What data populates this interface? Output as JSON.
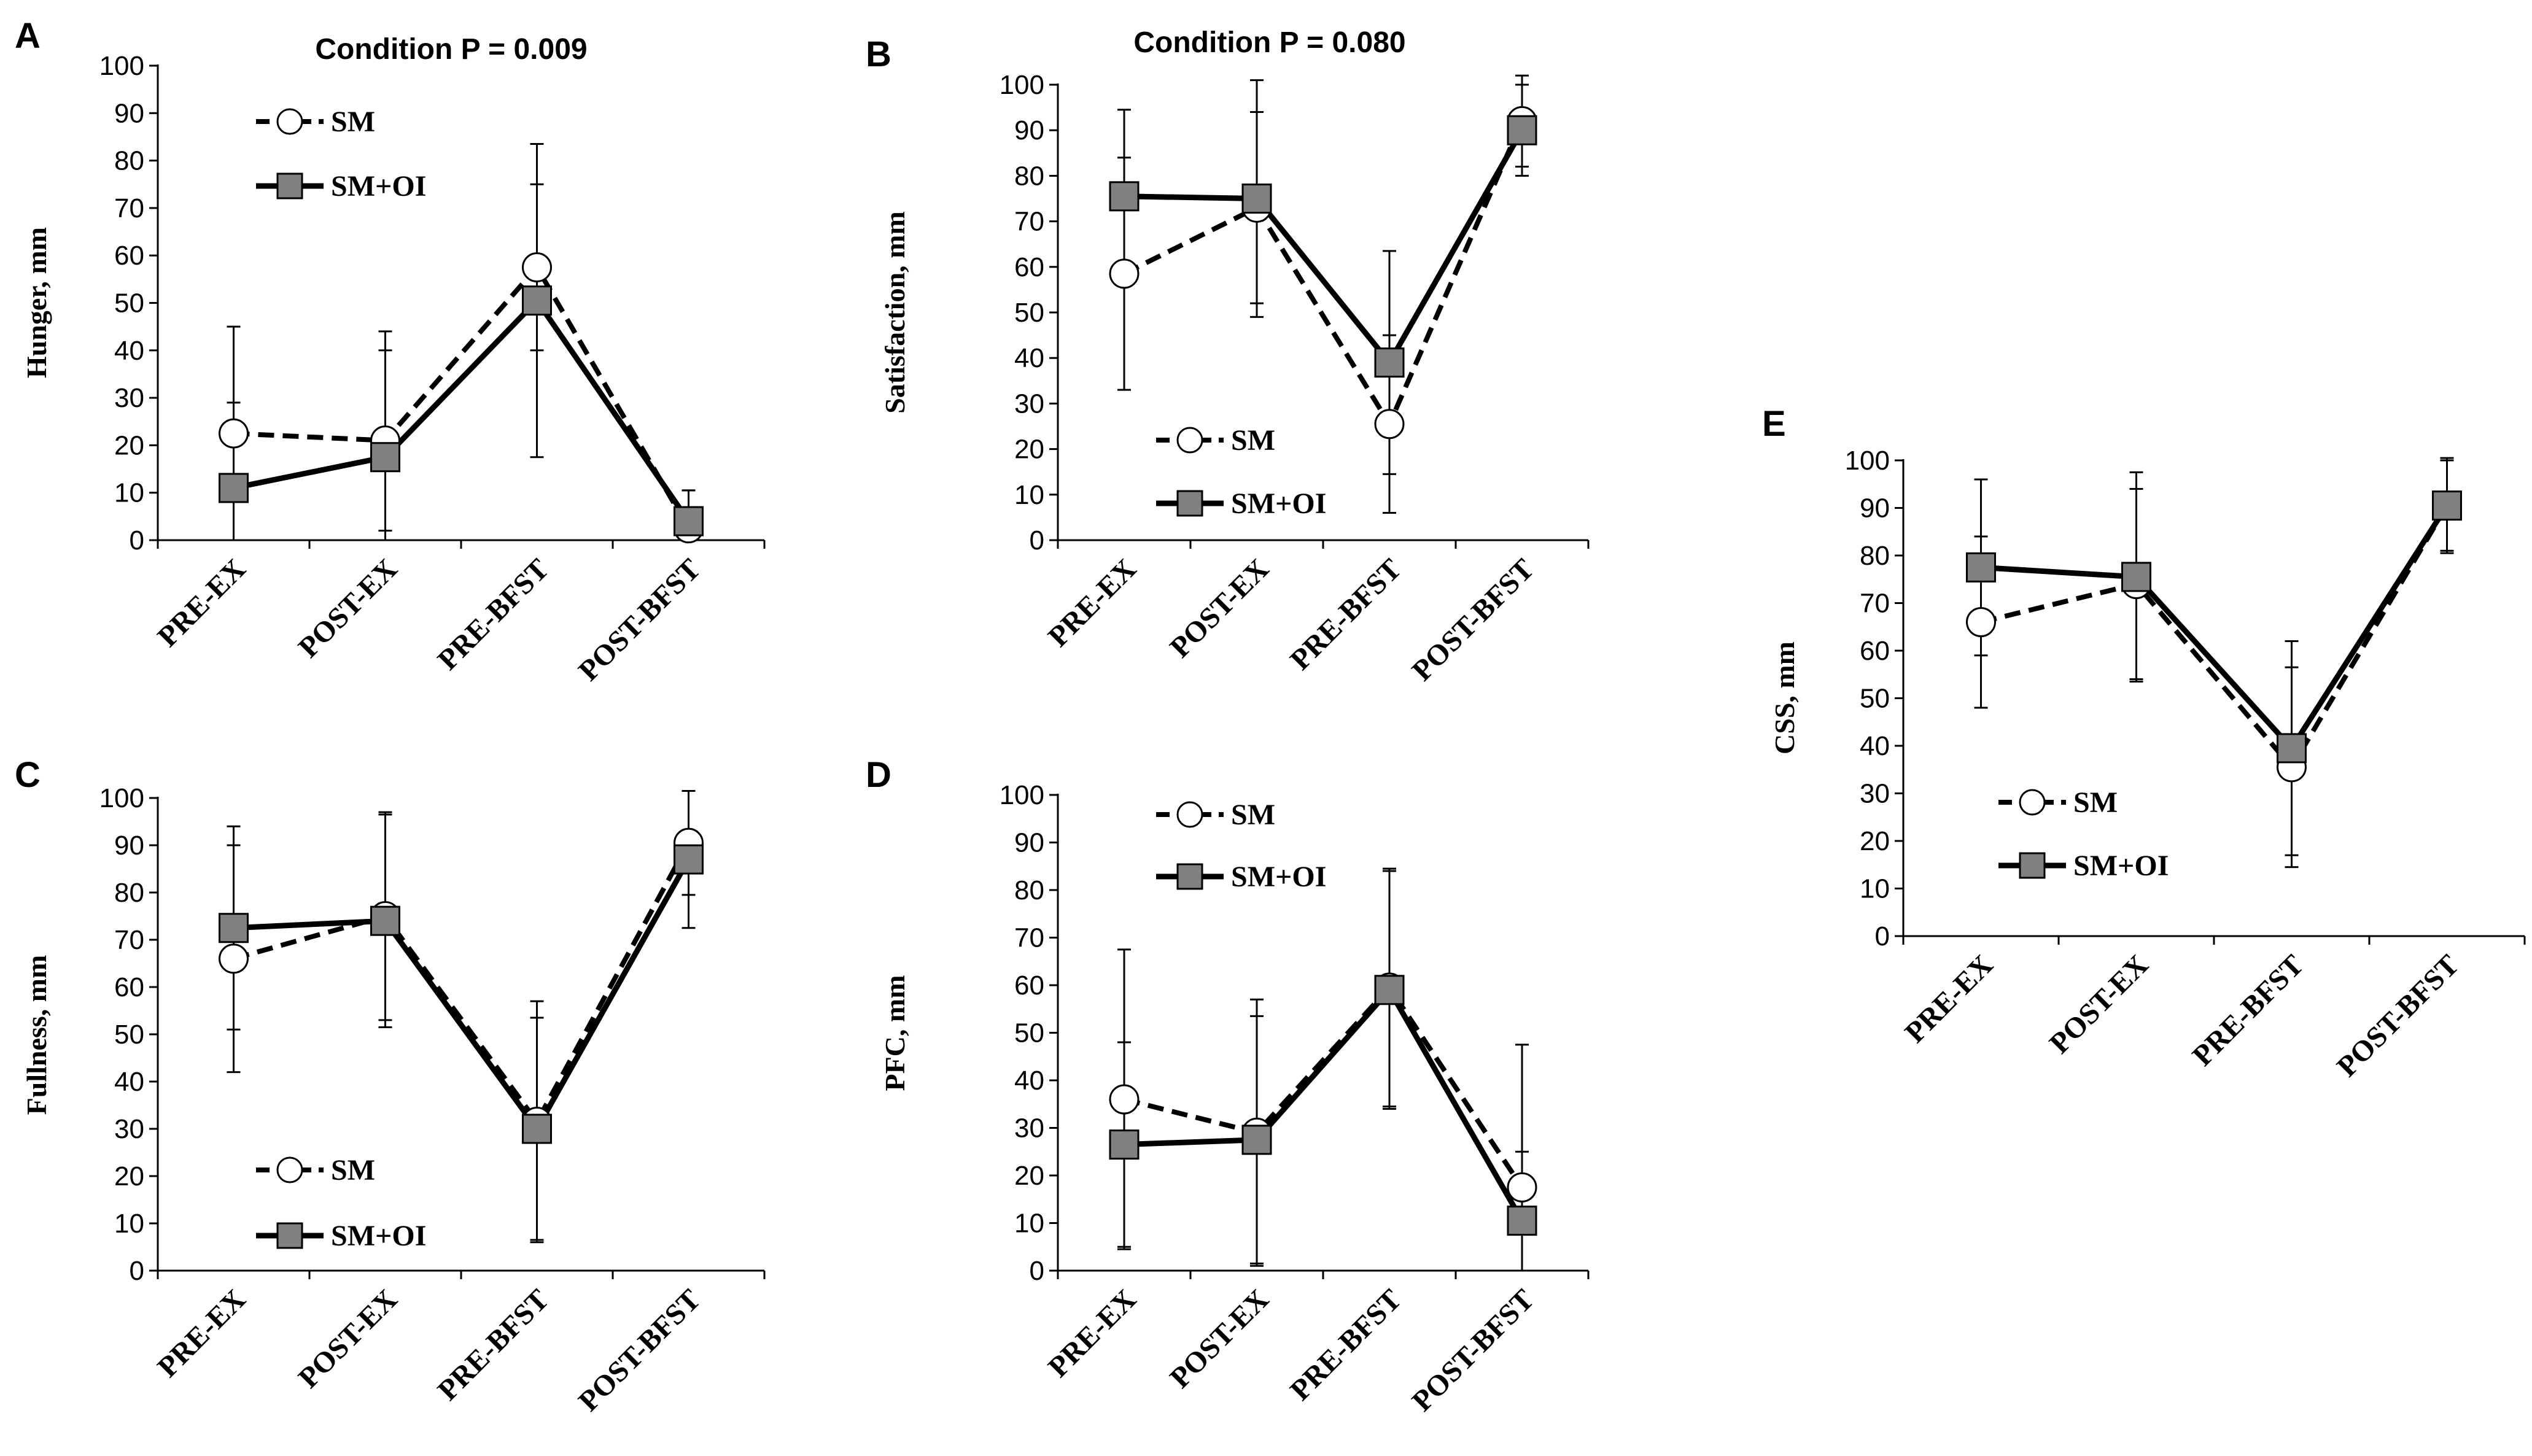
{
  "chart_data": [
    {
      "panel": "A",
      "type": "line",
      "title": "Condition P = 0.009",
      "ylabel": "Hunger, mm",
      "categories": [
        "PRE-EX",
        "POST-EX",
        "PRE-BFST",
        "POST-BFST"
      ],
      "ylim": [
        0,
        100
      ],
      "yticks": [
        0,
        10,
        20,
        30,
        40,
        50,
        60,
        70,
        80,
        90,
        100
      ],
      "legend_position": "top-left",
      "series": [
        {
          "name": "SM",
          "marker": "circle",
          "line": "dashed",
          "values": [
            22.5,
            21,
            57.5,
            2.5
          ],
          "error": [
            22.5,
            19,
            17.5,
            8
          ]
        },
        {
          "name": "SM+OI",
          "marker": "square",
          "line": "solid",
          "values": [
            11,
            17.5,
            50.5,
            4
          ],
          "error": [
            18,
            26.5,
            33,
            6.5
          ]
        }
      ]
    },
    {
      "panel": "B",
      "type": "line",
      "title": "Condition P = 0.080",
      "ylabel": "Satisfaction, mm",
      "categories": [
        "PRE-EX",
        "POST-EX",
        "PRE-BFST",
        "POST-BFST"
      ],
      "ylim": [
        0,
        100
      ],
      "yticks": [
        0,
        10,
        20,
        30,
        40,
        50,
        60,
        70,
        80,
        90,
        100
      ],
      "legend_position": "bottom-left",
      "series": [
        {
          "name": "SM",
          "marker": "circle",
          "line": "dashed",
          "values": [
            58.5,
            73,
            25.5,
            92
          ],
          "error": [
            25.5,
            21,
            19.5,
            10
          ]
        },
        {
          "name": "SM+OI",
          "marker": "square",
          "line": "solid",
          "values": [
            75.5,
            75,
            39,
            90
          ],
          "error": [
            19,
            26,
            24.5,
            10
          ]
        }
      ]
    },
    {
      "panel": "C",
      "type": "line",
      "title": "",
      "ylabel": "Fullness, mm",
      "categories": [
        "PRE-EX",
        "POST-EX",
        "PRE-BFST",
        "POST-BFST"
      ],
      "ylim": [
        0,
        100
      ],
      "yticks": [
        0,
        10,
        20,
        30,
        40,
        50,
        60,
        70,
        80,
        90,
        100
      ],
      "legend_position": "bottom-left",
      "series": [
        {
          "name": "SM",
          "marker": "circle",
          "line": "dashed",
          "values": [
            66,
            75,
            31.5,
            90.5
          ],
          "error": [
            24,
            22,
            25.5,
            11
          ]
        },
        {
          "name": "SM+OI",
          "marker": "square",
          "line": "solid",
          "values": [
            72.5,
            74,
            30,
            87
          ],
          "error": [
            21.5,
            22.5,
            23.5,
            14.5
          ]
        }
      ]
    },
    {
      "panel": "D",
      "type": "line",
      "title": "",
      "ylabel": "PFC, mm",
      "categories": [
        "PRE-EX",
        "POST-EX",
        "PRE-BFST",
        "POST-BFST"
      ],
      "ylim": [
        0,
        100
      ],
      "yticks": [
        0,
        10,
        20,
        30,
        40,
        50,
        60,
        70,
        80,
        90,
        100
      ],
      "legend_position": "top-left",
      "series": [
        {
          "name": "SM",
          "marker": "circle",
          "line": "dashed",
          "values": [
            36,
            29,
            59.5,
            17.5
          ],
          "error": [
            31.5,
            28,
            25,
            30
          ]
        },
        {
          "name": "SM+OI",
          "marker": "square",
          "line": "solid",
          "values": [
            26.5,
            27.5,
            59,
            10.5
          ],
          "error": [
            21.5,
            26,
            25,
            14.5
          ]
        }
      ]
    },
    {
      "panel": "E",
      "type": "line",
      "title": "",
      "ylabel": "CSS, mm",
      "categories": [
        "PRE-EX",
        "POST-EX",
        "PRE-BFST",
        "POST-BFST"
      ],
      "ylim": [
        0,
        100
      ],
      "yticks": [
        0,
        10,
        20,
        30,
        40,
        50,
        60,
        70,
        80,
        90,
        100
      ],
      "legend_position": "bottom-left",
      "series": [
        {
          "name": "SM",
          "marker": "circle",
          "line": "dashed",
          "values": [
            66,
            74,
            35.5,
            90.5
          ],
          "error": [
            18,
            20,
            21,
            10
          ]
        },
        {
          "name": "SM+OI",
          "marker": "square",
          "line": "solid",
          "values": [
            77.5,
            75.5,
            39.5,
            90.5
          ],
          "error": [
            18.5,
            22,
            22.5,
            9.5
          ]
        }
      ]
    }
  ]
}
